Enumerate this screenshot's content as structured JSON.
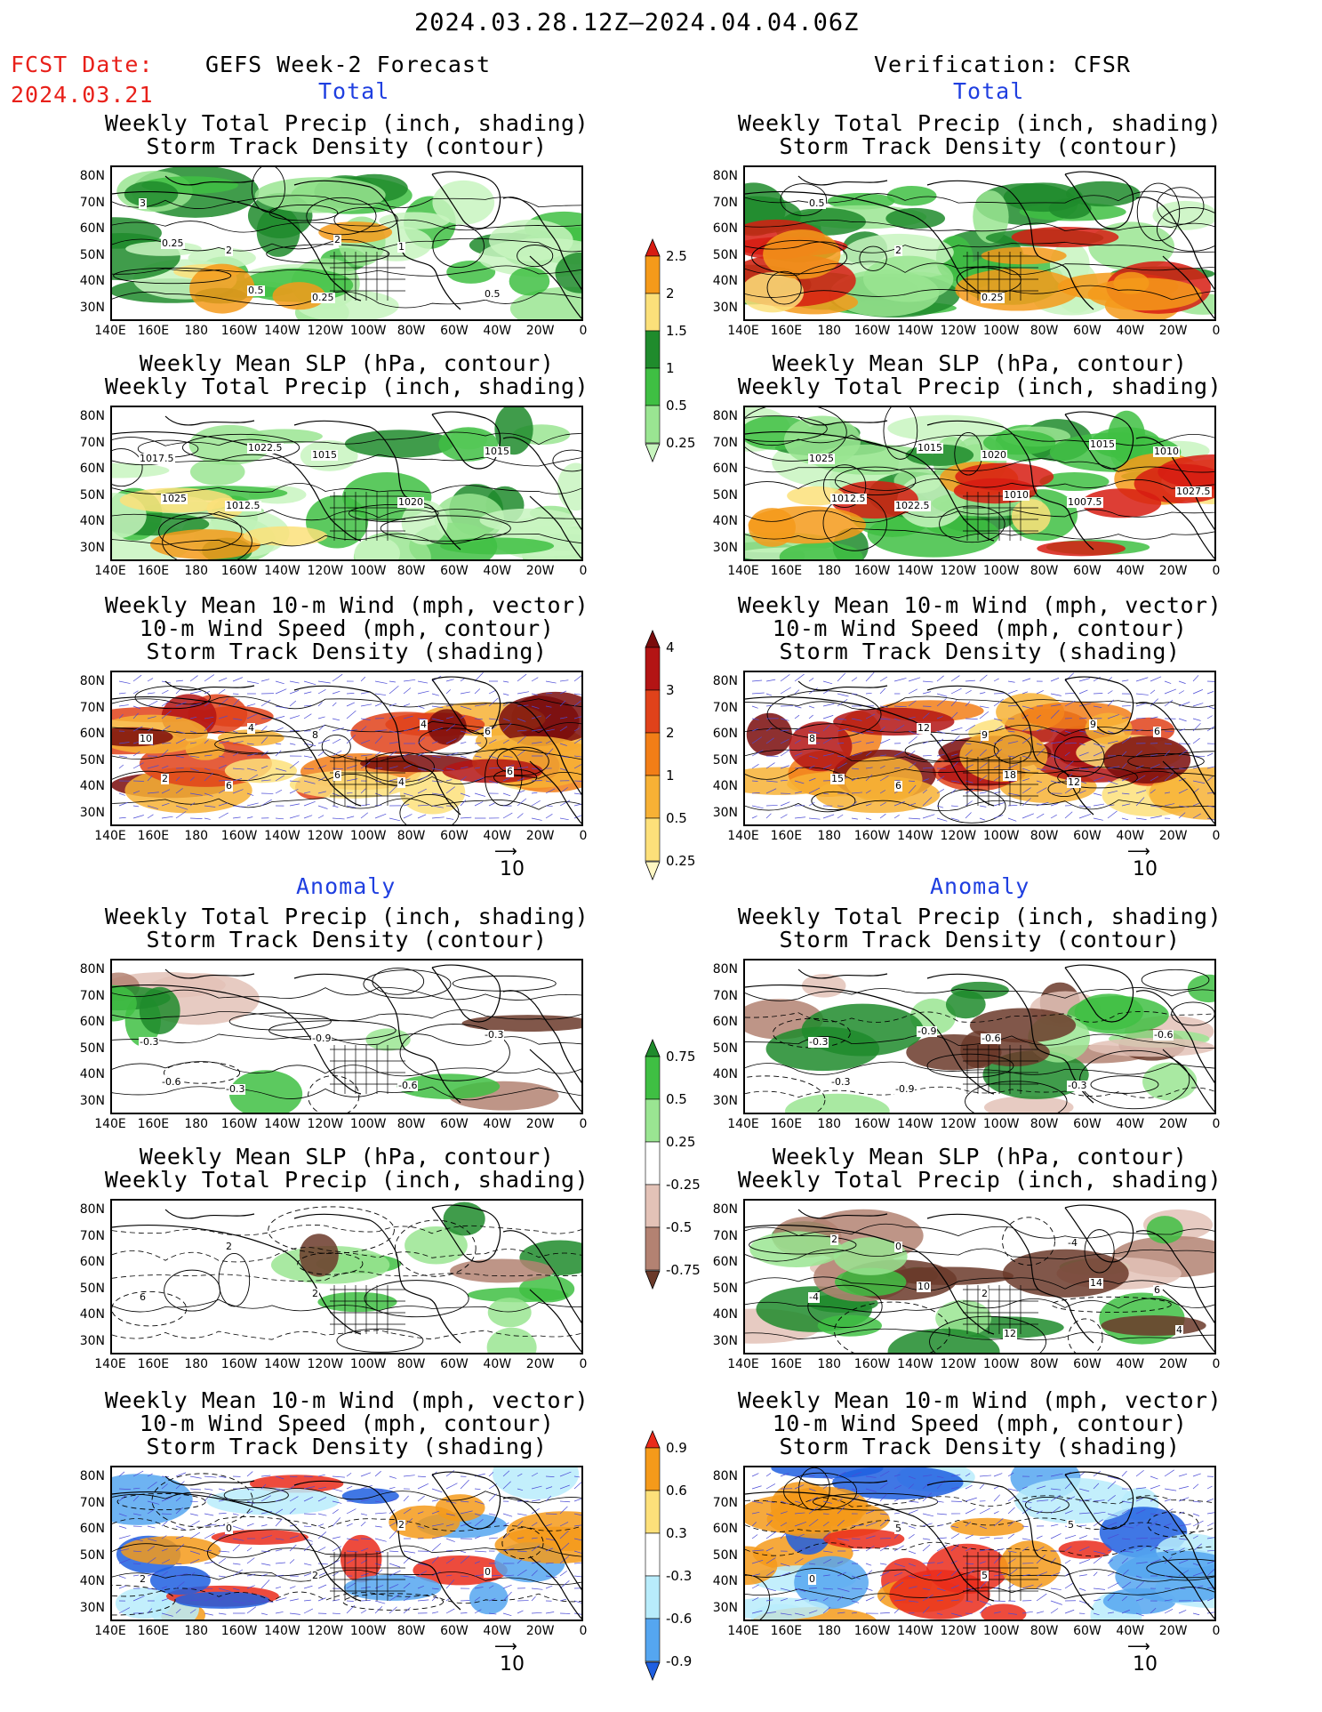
{
  "header": {
    "date_range": "2024.03.28.12Z–2024.04.04.06Z",
    "fcst_label": "FCST Date:",
    "fcst_date": "2024.03.21",
    "left_title": "GEFS Week-2 Forecast",
    "right_title": "Verification: CFSR",
    "total_label": "Total",
    "anomaly_label": "Anomaly"
  },
  "panel_titles": {
    "precip_storm": [
      "Weekly Total Precip (inch, shading)",
      "Storm Track Density (contour)"
    ],
    "slp_precip": [
      "Weekly Mean SLP (hPa, contour)",
      "Weekly Total Precip (inch, shading)"
    ],
    "wind_storm": [
      "Weekly Mean 10-m Wind (mph, vector)",
      "10-m Wind Speed (mph, contour)",
      "Storm Track Density (shading)"
    ]
  },
  "axes": {
    "lat_labels": [
      "80N",
      "70N",
      "60N",
      "50N",
      "40N",
      "30N"
    ],
    "lon_labels": [
      "140E",
      "160E",
      "180",
      "160W",
      "140W",
      "120W",
      "100W",
      "80W",
      "60W",
      "40W",
      "20W",
      "0"
    ]
  },
  "vector_ref": "10",
  "colorbars": {
    "precip_total": {
      "labels": [
        "2.5",
        "2",
        "1.5",
        "1",
        "0.5",
        "0.25"
      ],
      "colors": [
        "#d71c12",
        "#f59a1a",
        "#fbe07a",
        "#1f8b2c",
        "#3fbf43",
        "#9ae592",
        "#c8f5bf"
      ]
    },
    "storm_total": {
      "labels": [
        "4",
        "3",
        "2",
        "1",
        "0.5",
        "0.25"
      ],
      "colors": [
        "#7a0c0c",
        "#b31414",
        "#e0421a",
        "#f27e17",
        "#f7b135",
        "#fde07a",
        "#fff7c4"
      ]
    },
    "precip_anom": {
      "labels": [
        "0.75",
        "0.5",
        "0.25",
        "-0.25",
        "-0.5",
        "-0.75"
      ],
      "colors": [
        "#1f8b2c",
        "#3fbf43",
        "#9ae592",
        "#ffffff",
        "#e3c2b7",
        "#b38272",
        "#6b3a2a"
      ]
    },
    "storm_anom": {
      "labels": [
        "0.9",
        "0.6",
        "0.3",
        "-0.3",
        "-0.6",
        "-0.9"
      ],
      "colors": [
        "#ea2b1b",
        "#f59a1a",
        "#fde07a",
        "#ffffff",
        "#b8ecfb",
        "#55a6f0",
        "#1f5fe0"
      ]
    }
  },
  "contour_labels": {
    "fc_total_precip": [
      "3",
      "2",
      "0.25",
      "1",
      "0.5",
      "0.25",
      "0.5",
      "2"
    ],
    "vf_total_precip": [
      "0.5",
      "2",
      "0.25"
    ],
    "fc_total_slp": [
      "1017.5",
      "1012.5",
      "1015",
      "1020",
      "1015",
      "1025",
      "1022.5"
    ],
    "vf_total_slp": [
      "1025",
      "1022.5",
      "1020",
      "1007.5",
      "1010",
      "1012.5",
      "1015",
      "1010",
      "1015",
      "1027.5"
    ],
    "fc_total_wind": [
      "10",
      "6",
      "8",
      "4",
      "6",
      "2",
      "4",
      "6",
      "4",
      "6"
    ],
    "vf_total_wind": [
      "8",
      "6",
      "9",
      "12",
      "6",
      "15",
      "12",
      "18",
      "9"
    ],
    "fc_anom_precip": [
      "-0.3",
      "-0.3",
      "-0.9",
      "-0.6",
      "-0.3",
      "-0.6"
    ],
    "vf_anom_precip": [
      "-0.3",
      "-0.9",
      "-0.6",
      "-0.3",
      "-0.6",
      "-0.3",
      "-0.9"
    ],
    "fc_anom_slp": [
      "6",
      "2",
      "2"
    ],
    "vf_anom_slp": [
      "-4",
      "0",
      "2",
      "-4",
      "6",
      "2",
      "10",
      "12",
      "14",
      "4"
    ],
    "fc_anom_wind": [
      "2",
      "0",
      "2",
      "2",
      "0"
    ],
    "vf_anom_wind": [
      "0",
      "5",
      "5",
      "5"
    ]
  }
}
